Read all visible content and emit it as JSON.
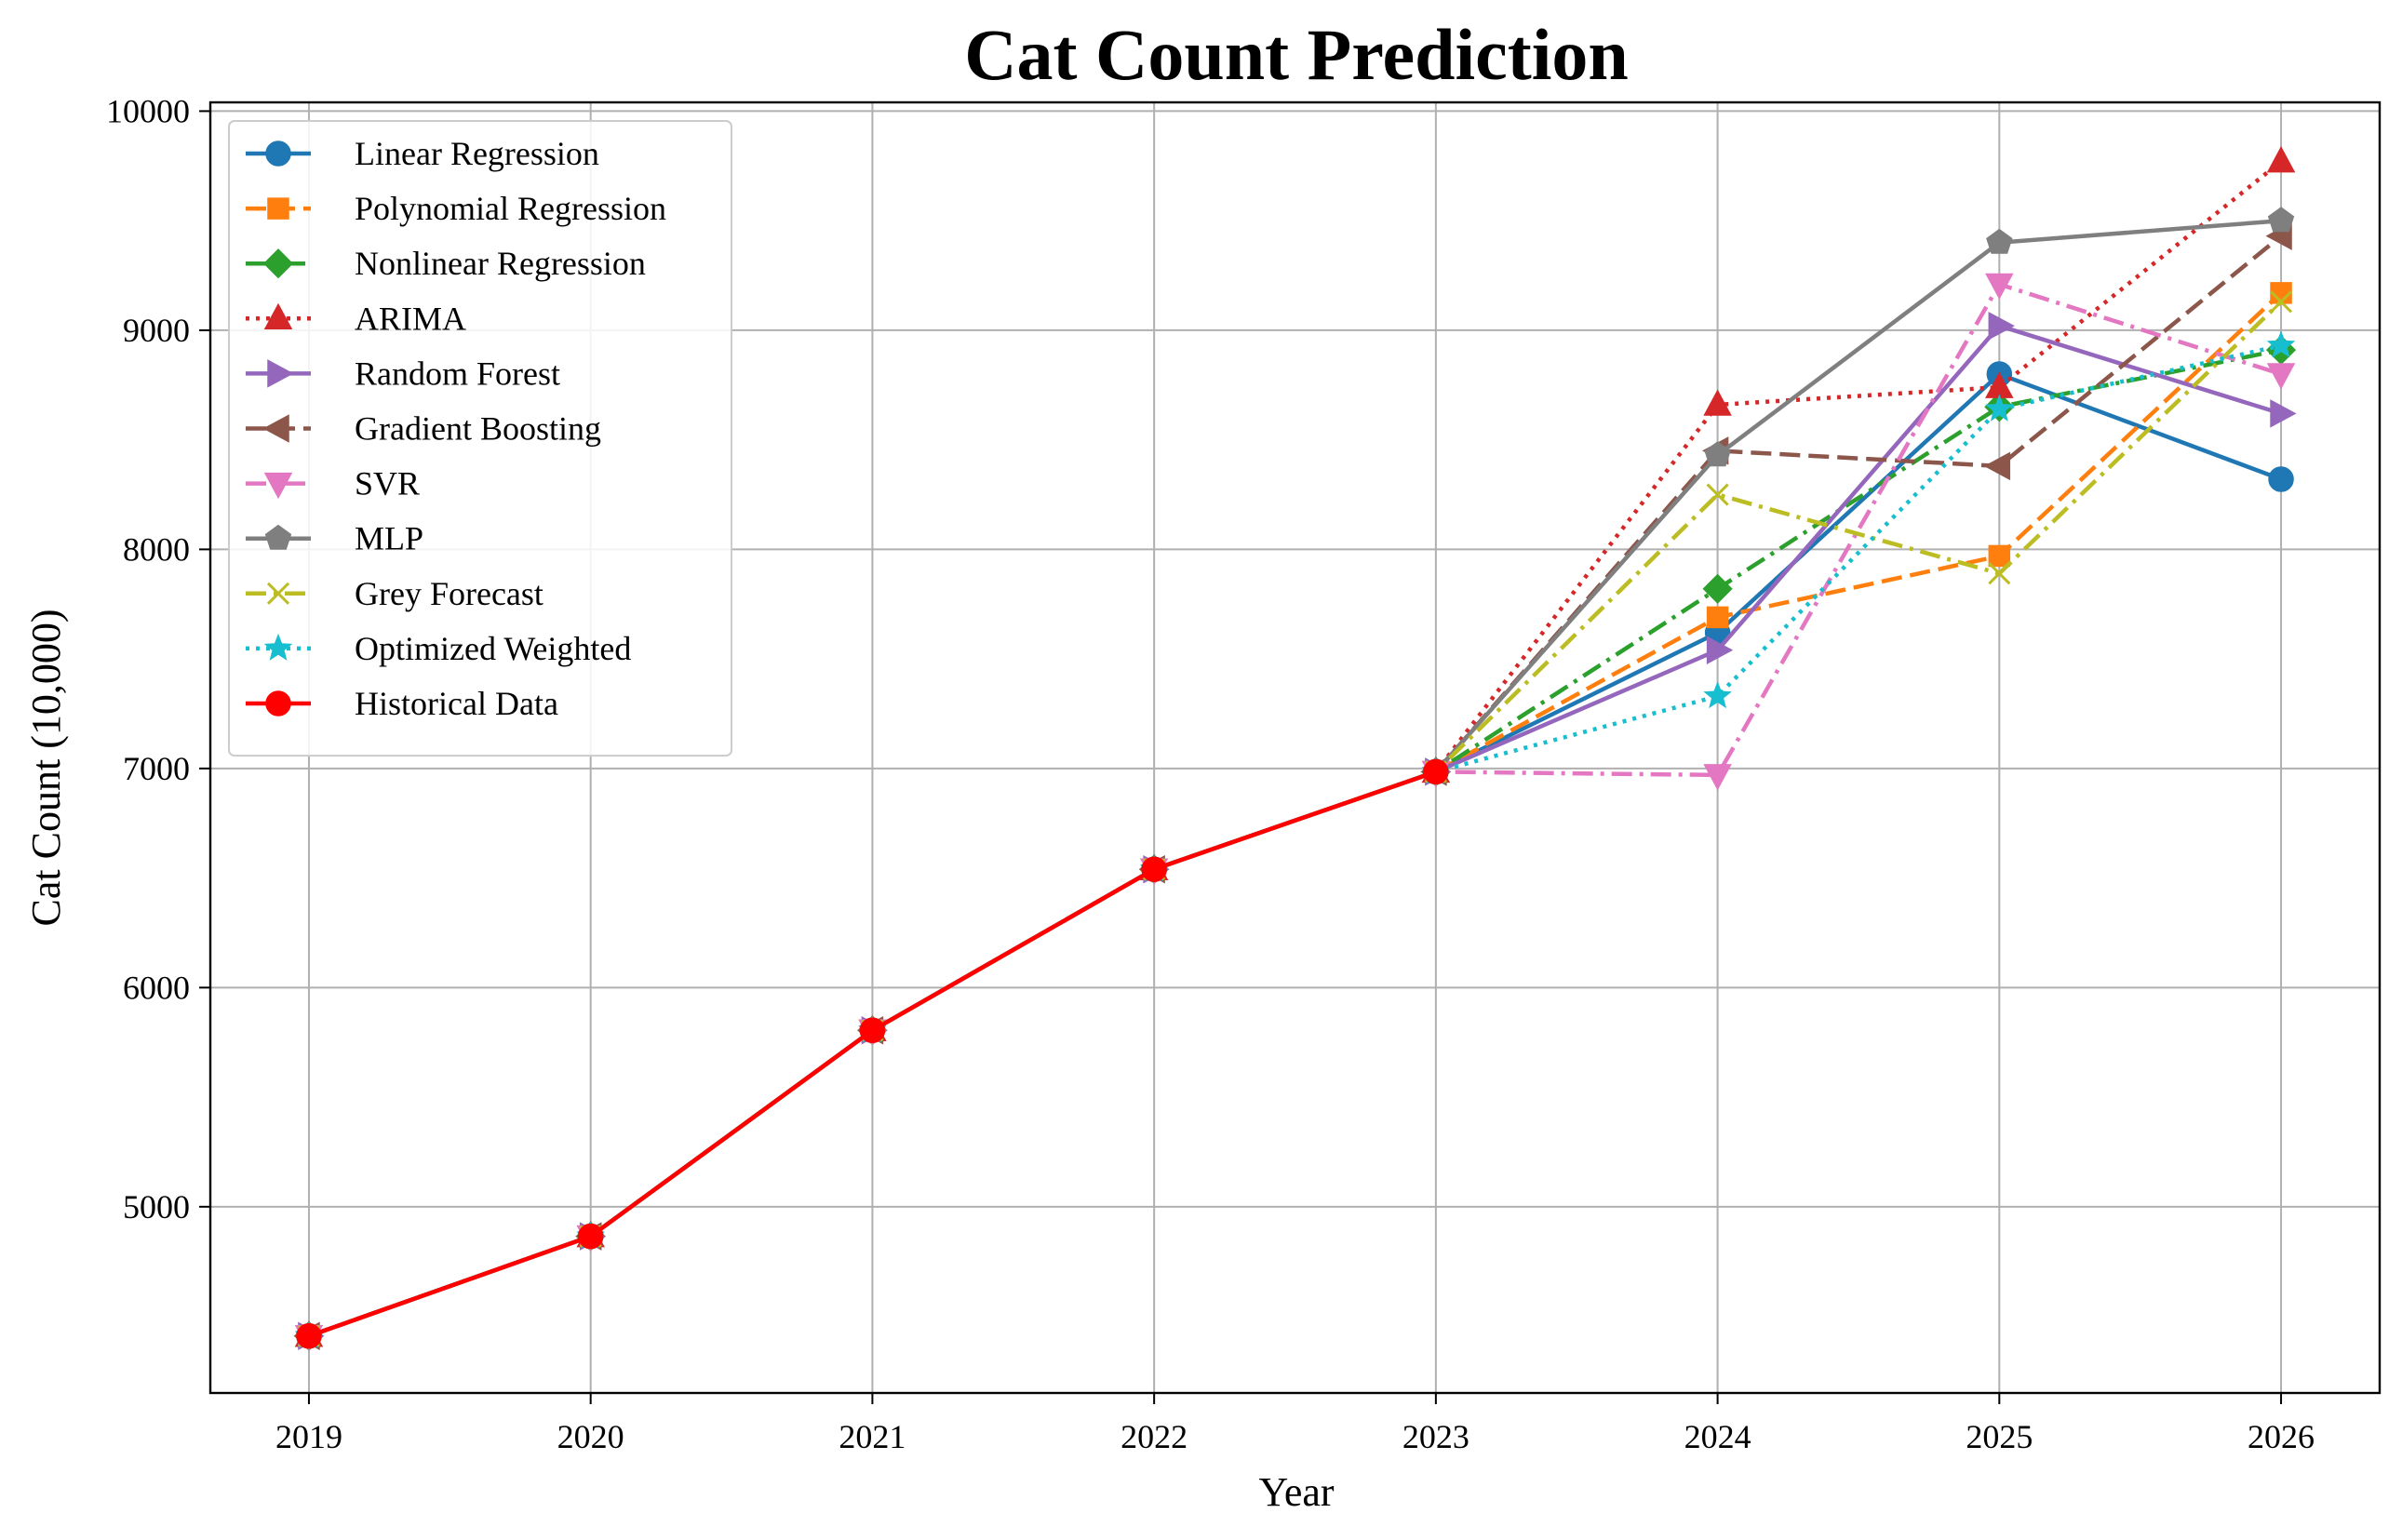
{
  "chart_data": {
    "type": "line",
    "title": "Cat Count Prediction",
    "xlabel": "Year",
    "ylabel": "Cat Count (10,000)",
    "x": [
      2019,
      2020,
      2021,
      2022,
      2023,
      2024,
      2025,
      2026
    ],
    "xlim": [
      2018.65,
      2026.35
    ],
    "ylim": [
      4150,
      10040
    ],
    "xticks": [
      2019,
      2020,
      2021,
      2022,
      2023,
      2024,
      2025,
      2026
    ],
    "yticks": [
      5000,
      6000,
      7000,
      8000,
      9000,
      10000
    ],
    "grid": true,
    "legend_position": "upper-left",
    "series": [
      {
        "name": "Linear Regression",
        "color": "#1f77b4",
        "dash": "solid",
        "marker": "circle",
        "x": [
          2019,
          2020,
          2021,
          2022,
          2023,
          2024,
          2025,
          2026
        ],
        "values": [
          4410,
          4865,
          5805,
          6540,
          6985,
          7620,
          8800,
          8320
        ]
      },
      {
        "name": "Polynomial Regression",
        "color": "#ff7f0e",
        "dash": "dashed",
        "marker": "square",
        "x": [
          2019,
          2020,
          2021,
          2022,
          2023,
          2024,
          2025,
          2026
        ],
        "values": [
          4410,
          4865,
          5805,
          6540,
          6985,
          7690,
          7970,
          9170
        ]
      },
      {
        "name": "Nonlinear Regression",
        "color": "#2ca02c",
        "dash": "dashdot",
        "marker": "diamond",
        "x": [
          2019,
          2020,
          2021,
          2022,
          2023,
          2024,
          2025,
          2026
        ],
        "values": [
          4410,
          4865,
          5805,
          6540,
          6985,
          7820,
          8650,
          8910
        ]
      },
      {
        "name": "ARIMA",
        "color": "#d62728",
        "dash": "dotted",
        "marker": "triangle-up",
        "x": [
          2019,
          2020,
          2021,
          2022,
          2023,
          2024,
          2025,
          2026
        ],
        "values": [
          4410,
          4865,
          5805,
          6540,
          6985,
          8660,
          8740,
          9770
        ]
      },
      {
        "name": "Random Forest",
        "color": "#9467bd",
        "dash": "solid",
        "marker": "triangle-right",
        "x": [
          2019,
          2020,
          2021,
          2022,
          2023,
          2024,
          2025,
          2026
        ],
        "values": [
          4410,
          4865,
          5805,
          6540,
          6985,
          7540,
          9020,
          8620
        ]
      },
      {
        "name": "Gradient Boosting",
        "color": "#8c564b",
        "dash": "dashed",
        "marker": "triangle-left",
        "x": [
          2019,
          2020,
          2021,
          2022,
          2023,
          2024,
          2025,
          2026
        ],
        "values": [
          4410,
          4865,
          5805,
          6540,
          6985,
          8450,
          8380,
          9430
        ]
      },
      {
        "name": "SVR",
        "color": "#e377c2",
        "dash": "dashdot",
        "marker": "triangle-down",
        "x": [
          2019,
          2020,
          2021,
          2022,
          2023,
          2024,
          2025,
          2026
        ],
        "values": [
          4410,
          4865,
          5805,
          6540,
          6985,
          6970,
          9210,
          8800
        ]
      },
      {
        "name": "MLP",
        "color": "#7f7f7f",
        "dash": "solid",
        "marker": "pentagon",
        "x": [
          2019,
          2020,
          2021,
          2022,
          2023,
          2024,
          2025,
          2026
        ],
        "values": [
          4410,
          4865,
          5805,
          6540,
          6985,
          8430,
          9400,
          9500
        ]
      },
      {
        "name": "Grey Forecast",
        "color": "#bcbd22",
        "dash": "dashdot",
        "marker": "x",
        "x": [
          2019,
          2020,
          2021,
          2022,
          2023,
          2024,
          2025,
          2026
        ],
        "values": [
          4410,
          4865,
          5805,
          6540,
          6985,
          8250,
          7890,
          9130
        ]
      },
      {
        "name": "Optimized Weighted",
        "color": "#17becf",
        "dash": "dotted",
        "marker": "star",
        "x": [
          2019,
          2020,
          2021,
          2022,
          2023,
          2024,
          2025,
          2026
        ],
        "values": [
          4410,
          4865,
          5805,
          6540,
          6985,
          7330,
          8640,
          8930
        ]
      },
      {
        "name": "Historical Data",
        "color": "#ff0000",
        "dash": "solid",
        "marker": "circle",
        "x": [
          2019,
          2020,
          2021,
          2022,
          2023
        ],
        "values": [
          4410,
          4865,
          5805,
          6540,
          6985
        ]
      }
    ]
  }
}
